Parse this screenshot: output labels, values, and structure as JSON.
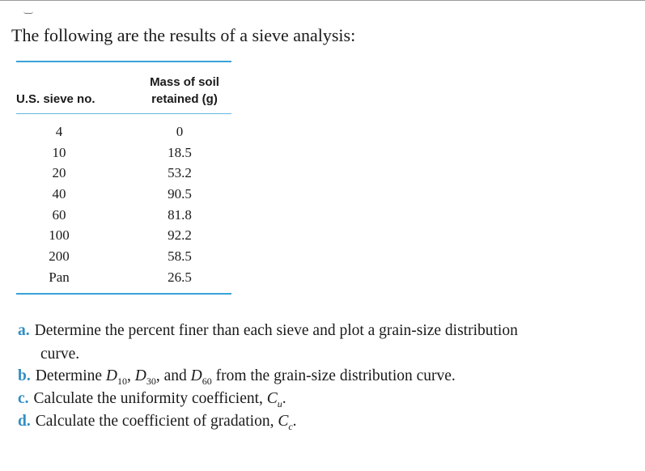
{
  "intro": "The following are the results of a sieve analysis:",
  "table": {
    "col1_header": "U.S. sieve no.",
    "col2_header_line1": "Mass of soil",
    "col2_header_line2": "retained (g)",
    "rows": [
      {
        "sieve": "4",
        "mass": "0"
      },
      {
        "sieve": "10",
        "mass": "18.5"
      },
      {
        "sieve": "20",
        "mass": "53.2"
      },
      {
        "sieve": "40",
        "mass": "90.5"
      },
      {
        "sieve": "60",
        "mass": "81.8"
      },
      {
        "sieve": "100",
        "mass": "92.2"
      },
      {
        "sieve": "200",
        "mass": "58.5"
      },
      {
        "sieve": "Pan",
        "mass": "26.5"
      }
    ]
  },
  "questions": {
    "a": {
      "label": "a.",
      "line1": "Determine the percent finer than each sieve and plot a grain-size distribution",
      "line2": "curve."
    },
    "b": {
      "label": "b.",
      "text_pre": "Determine",
      "d": "D",
      "sub10": "10",
      "sub30": "30",
      "sub60": "60",
      "sep": ",",
      "and": "and",
      "text_post": "from the grain-size distribution curve."
    },
    "c": {
      "label": "c.",
      "text": "Calculate the uniformity coefficient,",
      "var": "C",
      "sub": "u",
      "end": "."
    },
    "d": {
      "label": "d.",
      "text": "Calculate the coefficient of gradation,",
      "var": "C",
      "sub": "c",
      "end": "."
    }
  },
  "colors": {
    "accent": "#3aa3d8",
    "label": "#2f8ec4"
  }
}
